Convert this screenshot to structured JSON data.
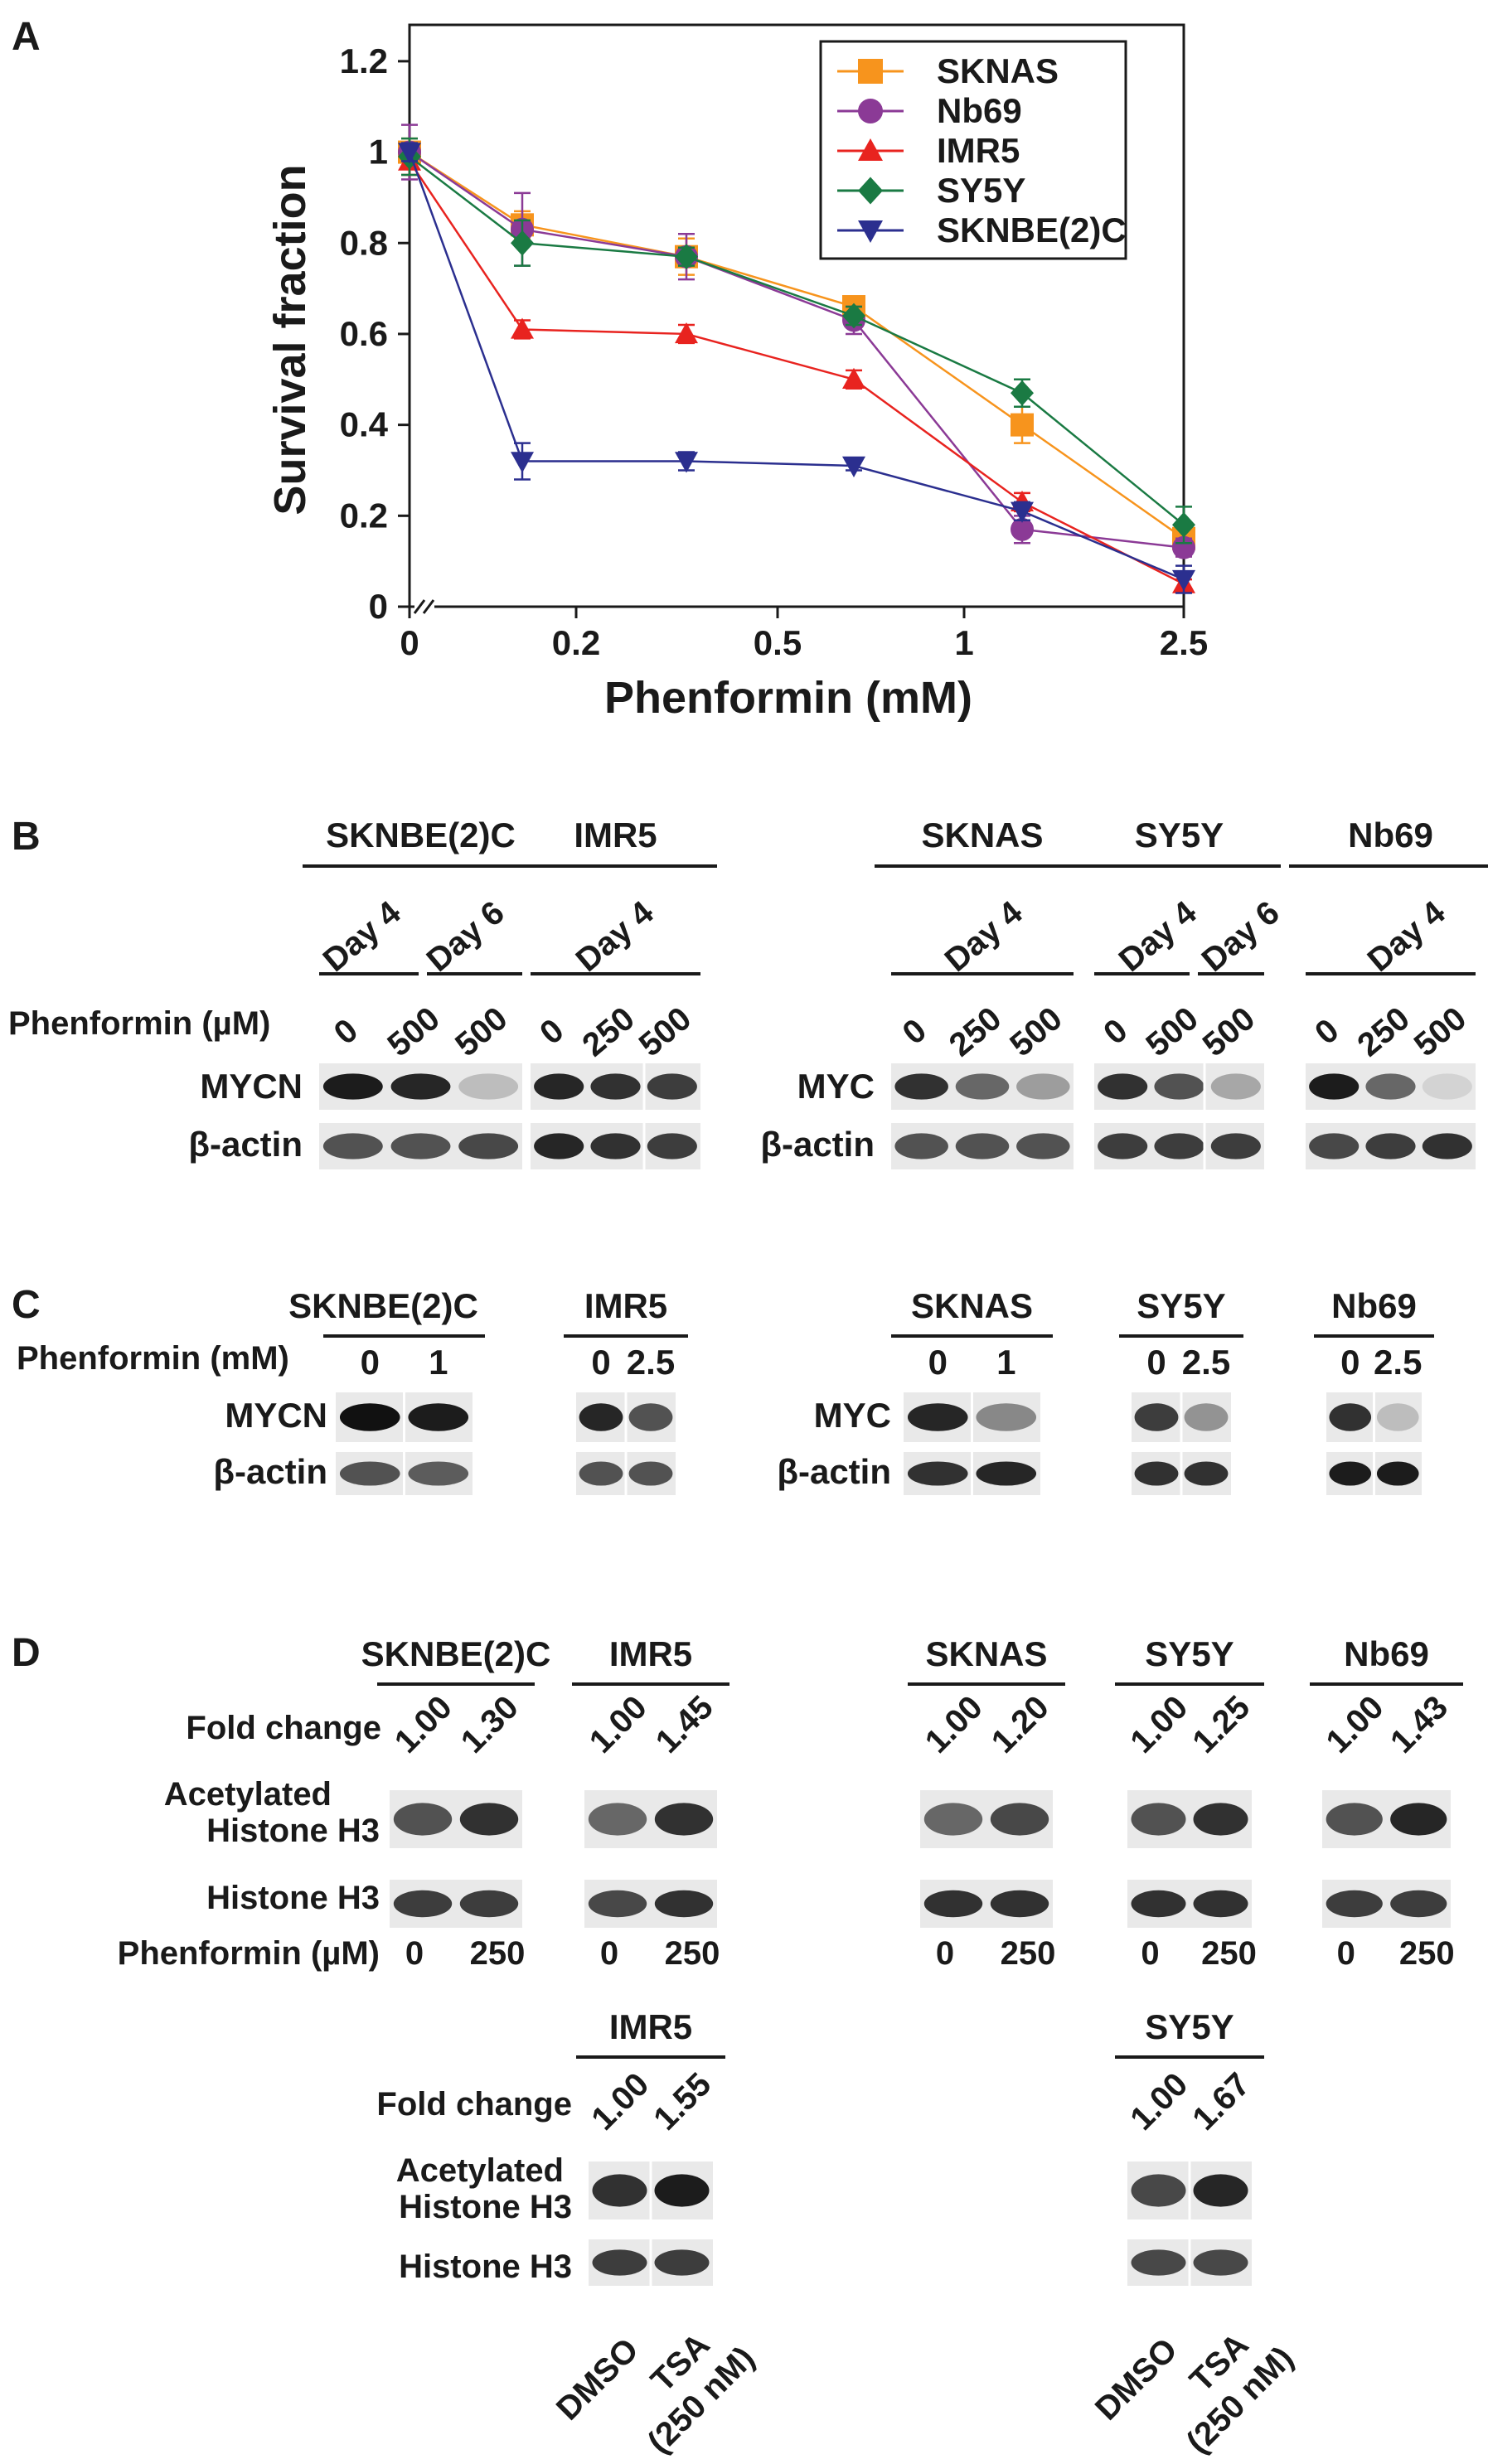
{
  "panel_letters": {
    "a": "A",
    "b": "B",
    "c": "C",
    "d": "D"
  },
  "chart_data": {
    "type": "line",
    "title": "",
    "xlabel": "Phenformin (mM)",
    "ylabel": "Survival fraction",
    "x_tick_labels": [
      "0",
      "0.2",
      "0.5",
      "1",
      "2.5"
    ],
    "y_tick_labels": [
      "0",
      "0.2",
      "0.4",
      "0.6",
      "0.8",
      "1",
      "1.2"
    ],
    "ylim": [
      0,
      1.28
    ],
    "x_axis_break": true,
    "legend_position": "top-right",
    "grid": false,
    "x": [
      "0",
      "0.15",
      "0.35",
      "0.65",
      "1.25",
      "2.5"
    ],
    "series": [
      {
        "name": "SKNAS",
        "color": "#f7941d",
        "marker": "square",
        "values": [
          1.0,
          0.84,
          0.77,
          0.66,
          0.4,
          0.15
        ],
        "errors": [
          0.03,
          0.03,
          0.04,
          0.02,
          0.04,
          0.03
        ]
      },
      {
        "name": "Nb69",
        "color": "#8b3a96",
        "marker": "circle",
        "values": [
          1.0,
          0.83,
          0.77,
          0.63,
          0.17,
          0.13
        ],
        "errors": [
          0.06,
          0.08,
          0.05,
          0.03,
          0.03,
          0.02
        ]
      },
      {
        "name": "IMR5",
        "color": "#e8231f",
        "marker": "triangle-up",
        "values": [
          0.98,
          0.61,
          0.6,
          0.5,
          0.23,
          0.05
        ],
        "errors": [
          0.03,
          0.02,
          0.02,
          0.02,
          0.02,
          0.01
        ]
      },
      {
        "name": "SY5Y",
        "color": "#1a7a43",
        "marker": "diamond",
        "values": [
          0.99,
          0.8,
          0.77,
          0.64,
          0.47,
          0.18
        ],
        "errors": [
          0.04,
          0.05,
          0.02,
          0.02,
          0.03,
          0.04
        ]
      },
      {
        "name": "SKNBE(2)C",
        "color": "#2b2f8f",
        "marker": "triangle-down",
        "values": [
          1.0,
          0.32,
          0.32,
          0.31,
          0.21,
          0.06
        ],
        "errors": [
          0.02,
          0.04,
          0.02,
          0.01,
          0.02,
          0.03
        ]
      }
    ]
  },
  "panel_b": {
    "row_label": "Phenformin (µM)",
    "blots": [
      {
        "cell_line": "SKNBE(2)C",
        "days": [
          "Day 4",
          "Day 6"
        ],
        "doses": [
          "0",
          "500",
          "500"
        ],
        "protein": "MYCN",
        "loading": "β-actin",
        "target_intensity": [
          0.95,
          0.9,
          0.2
        ],
        "loading_intensity": [
          0.7,
          0.7,
          0.75
        ]
      },
      {
        "cell_line": "IMR5",
        "days": [
          "Day 4"
        ],
        "doses": [
          "0",
          "250",
          "500"
        ],
        "protein": "",
        "loading": "",
        "target_intensity": [
          0.9,
          0.85,
          0.8
        ],
        "loading_intensity": [
          0.9,
          0.85,
          0.8
        ]
      },
      {
        "cell_line": "SKNAS",
        "days": [
          "Day 4"
        ],
        "doses": [
          "0",
          "250",
          "500"
        ],
        "protein": "MYC",
        "loading": "β-actin",
        "target_intensity": [
          0.85,
          0.6,
          0.35
        ],
        "loading_intensity": [
          0.7,
          0.7,
          0.7
        ]
      },
      {
        "cell_line": "SY5Y",
        "days": [
          "Day 4",
          "Day 6"
        ],
        "doses": [
          "0",
          "500",
          "500"
        ],
        "protein": "",
        "loading": "",
        "target_intensity": [
          0.85,
          0.7,
          0.3
        ],
        "loading_intensity": [
          0.8,
          0.8,
          0.8
        ]
      },
      {
        "cell_line": "Nb69",
        "days": [
          "Day 4"
        ],
        "doses": [
          "0",
          "250",
          "500"
        ],
        "protein": "",
        "loading": "",
        "target_intensity": [
          0.95,
          0.6,
          0.1
        ],
        "loading_intensity": [
          0.75,
          0.8,
          0.85
        ]
      }
    ]
  },
  "panel_c": {
    "row_label": "Phenformin (mM)",
    "blots": [
      {
        "cell_line": "SKNBE(2)C",
        "doses": [
          "0",
          "1"
        ],
        "protein": "MYCN",
        "loading": "β-actin",
        "target_intensity": [
          1.0,
          0.95
        ],
        "loading_intensity": [
          0.7,
          0.65
        ]
      },
      {
        "cell_line": "IMR5",
        "doses": [
          "0",
          "2.5"
        ],
        "protein": "",
        "loading": "",
        "target_intensity": [
          0.9,
          0.7
        ],
        "loading_intensity": [
          0.7,
          0.7
        ]
      },
      {
        "cell_line": "SKNAS",
        "doses": [
          "0",
          "1"
        ],
        "protein": "MYC",
        "loading": "β-actin",
        "target_intensity": [
          0.9,
          0.45
        ],
        "loading_intensity": [
          0.85,
          0.9
        ]
      },
      {
        "cell_line": "SY5Y",
        "doses": [
          "0",
          "2.5"
        ],
        "protein": "",
        "loading": "",
        "target_intensity": [
          0.8,
          0.4
        ],
        "loading_intensity": [
          0.85,
          0.85
        ]
      },
      {
        "cell_line": "Nb69",
        "doses": [
          "0",
          "2.5"
        ],
        "protein": "",
        "loading": "",
        "target_intensity": [
          0.85,
          0.2
        ],
        "loading_intensity": [
          0.95,
          0.95
        ]
      }
    ]
  },
  "panel_d": {
    "fold_label": "Fold change",
    "acetyl_label_1": "Acetylated",
    "acetyl_label_2": "Histone H3",
    "histone_label": "Histone H3",
    "dose_label": "Phenformin (µM)",
    "top_blots": [
      {
        "cell_line": "SKNBE(2)C",
        "fold": [
          "1.00",
          "1.30"
        ],
        "doses": [
          "0",
          "250"
        ],
        "acetyl_intensity": [
          0.7,
          0.85
        ],
        "histone_intensity": [
          0.8,
          0.8
        ]
      },
      {
        "cell_line": "IMR5",
        "fold": [
          "1.00",
          "1.45"
        ],
        "doses": [
          "0",
          "250"
        ],
        "acetyl_intensity": [
          0.6,
          0.85
        ],
        "histone_intensity": [
          0.75,
          0.85
        ]
      },
      {
        "cell_line": "SKNAS",
        "fold": [
          "1.00",
          "1.20"
        ],
        "doses": [
          "0",
          "250"
        ],
        "acetyl_intensity": [
          0.6,
          0.75
        ],
        "histone_intensity": [
          0.85,
          0.85
        ]
      },
      {
        "cell_line": "SY5Y",
        "fold": [
          "1.00",
          "1.25"
        ],
        "doses": [
          "0",
          "250"
        ],
        "acetyl_intensity": [
          0.7,
          0.85
        ],
        "histone_intensity": [
          0.85,
          0.85
        ]
      },
      {
        "cell_line": "Nb69",
        "fold": [
          "1.00",
          "1.43"
        ],
        "doses": [
          "0",
          "250"
        ],
        "acetyl_intensity": [
          0.7,
          0.9
        ],
        "histone_intensity": [
          0.8,
          0.8
        ]
      }
    ],
    "bottom_blots": [
      {
        "cell_line": "IMR5",
        "fold": [
          "1.00",
          "1.55"
        ],
        "treatments": [
          "DMSO",
          "TSA",
          "(250 nM)"
        ],
        "acetyl_intensity": [
          0.85,
          0.95
        ],
        "histone_intensity": [
          0.8,
          0.8
        ]
      },
      {
        "cell_line": "SY5Y",
        "fold": [
          "1.00",
          "1.67"
        ],
        "treatments": [
          "DMSO",
          "TSA",
          "(250 nM)"
        ],
        "acetyl_intensity": [
          0.75,
          0.9
        ],
        "histone_intensity": [
          0.75,
          0.75
        ]
      }
    ]
  }
}
